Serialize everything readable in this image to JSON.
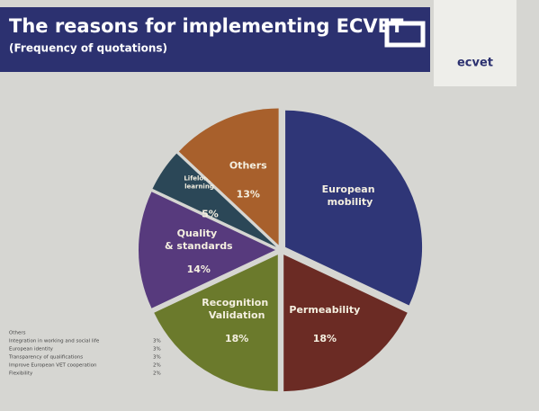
{
  "chart_data": {
    "type": "pie",
    "title": "The reasons for implementing ECVET",
    "subtitle": "(Frequency of quotations)",
    "logo": "ecvet",
    "categories": [
      "European mobility",
      "Permeability",
      "Recognition Validation",
      "Quality & standards",
      "Lifelong learning",
      "Others"
    ],
    "values": [
      32,
      18,
      18,
      14,
      5,
      13
    ],
    "value_labels": [
      null,
      "18%",
      "18%",
      "14%",
      "5%",
      "13%"
    ],
    "colors": [
      "#2f3677",
      "#6b2b24",
      "#6b7a2c",
      "#573a7d",
      "#2b4757",
      "#a8602c"
    ],
    "others_breakdown": {
      "title": "Others",
      "items": [
        {
          "label": "Integration in working and social life",
          "value_label": "3%"
        },
        {
          "label": "European identity",
          "value_label": "3%"
        },
        {
          "label": "Transparency of qualifications",
          "value_label": "3%"
        },
        {
          "label": "Improve European VET cooperation",
          "value_label": "2%"
        },
        {
          "label": "Flexibility",
          "value_label": "2%"
        }
      ]
    }
  }
}
